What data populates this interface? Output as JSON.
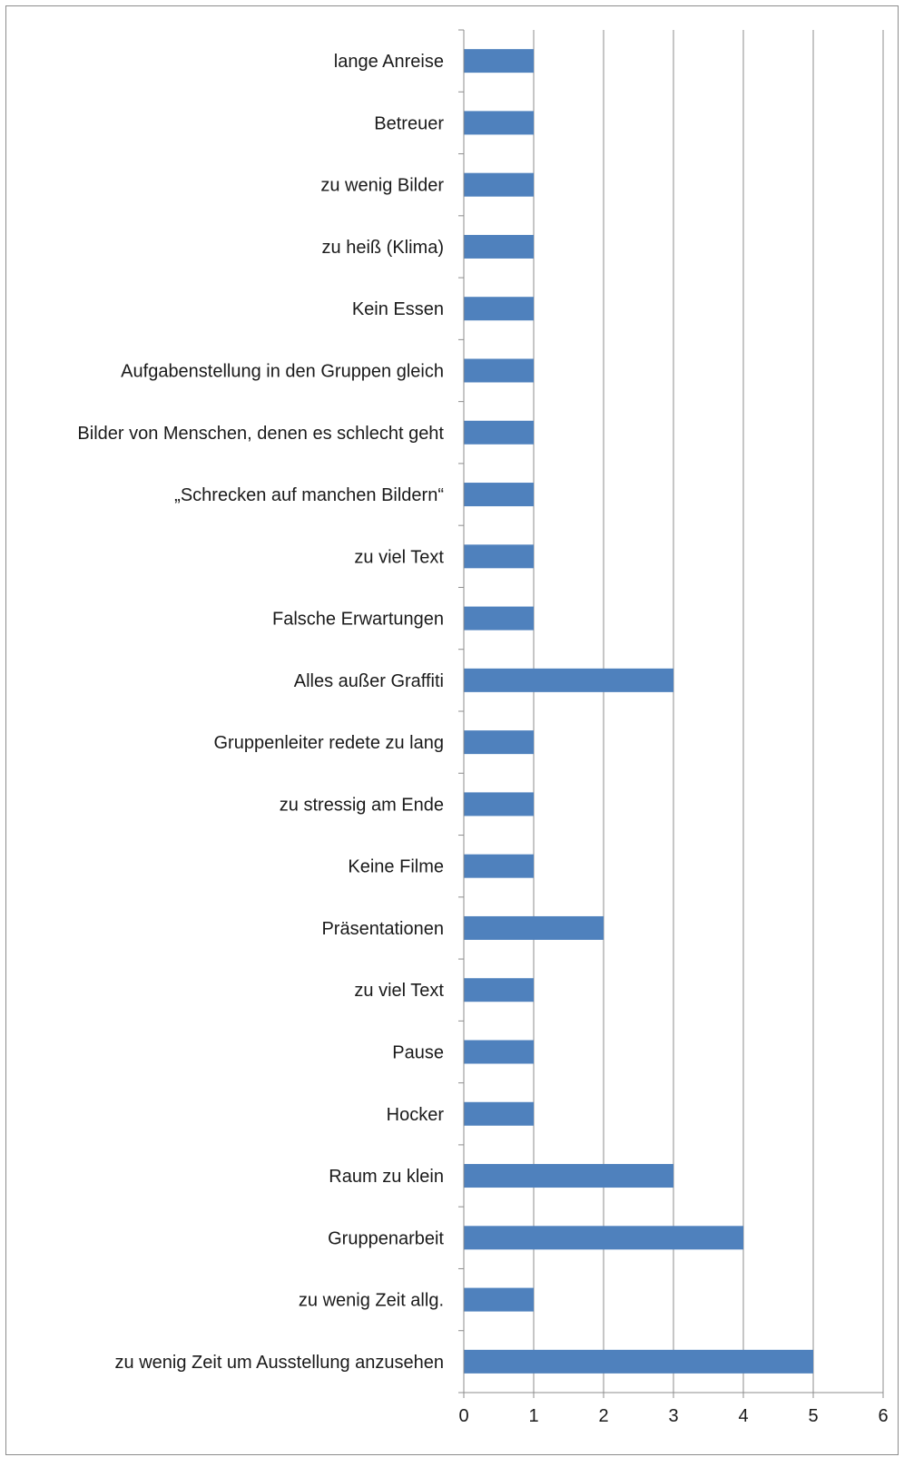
{
  "chart_data": {
    "type": "bar",
    "orientation": "horizontal",
    "title": "",
    "xlabel": "",
    "ylabel": "",
    "xlim": [
      0,
      6
    ],
    "x_ticks": [
      "0",
      "1",
      "2",
      "3",
      "4",
      "5",
      "6"
    ],
    "grid": "vertical",
    "legend": "none",
    "bar_color": "#4f81bd",
    "categories": [
      "lange Anreise",
      "Betreuer",
      "zu wenig Bilder",
      "zu heiß (Klima)",
      "Kein Essen",
      "Aufgabenstellung in den Gruppen gleich",
      "Bilder von Menschen, denen es schlecht geht",
      "„Schrecken auf manchen Bildern“",
      "zu viel Text",
      "Falsche Erwartungen",
      "Alles außer Graffiti",
      "Gruppenleiter redete zu lang",
      "zu stressig am Ende",
      "Keine Filme",
      "Präsentationen",
      "zu viel Text",
      "Pause",
      "Hocker",
      "Raum zu klein",
      "Gruppenarbeit",
      "zu wenig Zeit allg.",
      "zu wenig Zeit um Ausstellung anzusehen"
    ],
    "values": [
      1,
      1,
      1,
      1,
      1,
      1,
      1,
      1,
      1,
      1,
      3,
      1,
      1,
      1,
      2,
      1,
      1,
      1,
      3,
      4,
      1,
      5
    ]
  }
}
